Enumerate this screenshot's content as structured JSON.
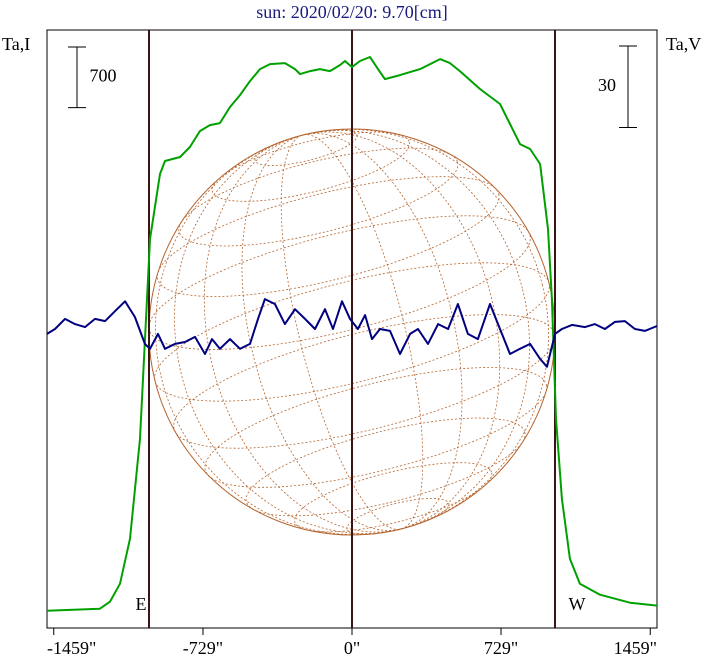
{
  "chart_data": {
    "type": "line",
    "title": "sun: 2020/02/20: 9.70[cm]",
    "ylabel": "Ta,I",
    "y2label": "Ta,V",
    "xlim": [
      -1492,
      1492
    ],
    "ylim": [
      -200,
      6700
    ],
    "y2lim": [
      -110,
      110
    ],
    "xticks": [
      {
        "value": -1459,
        "label": "-1459\""
      },
      {
        "value": -729,
        "label": "-729\""
      },
      {
        "value": 0,
        "label": "0\""
      },
      {
        "value": 729,
        "label": "729\""
      },
      {
        "value": 1459,
        "label": "1459\""
      }
    ],
    "i_scale": 700,
    "v_scale": 30,
    "limbs": [
      {
        "label": "E",
        "x": -993
      },
      {
        "label": "W",
        "x": 993
      }
    ],
    "series": [
      {
        "name": "I",
        "color": "#00a000",
        "x": [
          -1492,
          -1233,
          -1184,
          -1135,
          -1086,
          -1037,
          -1003,
          -988,
          -939,
          -915,
          -841,
          -793,
          -744,
          -695,
          -646,
          -597,
          -548,
          -499,
          -450,
          -401,
          -328,
          -279,
          -254,
          -205,
          -157,
          -108,
          -59,
          -34,
          0,
          39,
          88,
          127,
          161,
          235,
          333,
          431,
          479,
          528,
          626,
          724,
          773,
          822,
          871,
          920,
          959,
          978,
          998,
          1027,
          1066,
          1115,
          1213,
          1360,
          1492
        ],
        "values": [
          0,
          23,
          104,
          311,
          830,
          1984,
          3597,
          4289,
          5038,
          5188,
          5235,
          5350,
          5534,
          5603,
          5626,
          5811,
          5949,
          6110,
          6249,
          6307,
          6318,
          6249,
          6191,
          6226,
          6249,
          6226,
          6295,
          6342,
          6272,
          6342,
          6388,
          6249,
          6134,
          6180,
          6249,
          6364,
          6318,
          6226,
          6019,
          5846,
          5615,
          5384,
          5327,
          5154,
          4404,
          3597,
          2214,
          1291,
          600,
          311,
          184,
          92,
          58
        ]
      },
      {
        "name": "V",
        "color": "#000080",
        "axis": "y2",
        "x": [
          -1492,
          -1453,
          -1404,
          -1355,
          -1306,
          -1257,
          -1208,
          -1159,
          -1110,
          -1062,
          -1013,
          -988,
          -949,
          -915,
          -866,
          -817,
          -768,
          -719,
          -685,
          -646,
          -597,
          -548,
          -499,
          -460,
          -426,
          -377,
          -328,
          -279,
          -230,
          -181,
          -132,
          -93,
          -49,
          -10,
          29,
          64,
          98,
          137,
          186,
          235,
          284,
          323,
          372,
          421,
          470,
          518,
          567,
          616,
          675,
          724,
          773,
          822,
          871,
          920,
          954,
          993,
          1027,
          1076,
          1140,
          1188,
          1237,
          1286,
          1335,
          1384,
          1433,
          1492
        ],
        "values": [
          -1.8,
          0,
          3.7,
          1.8,
          0.7,
          3.7,
          2.9,
          6.6,
          10.2,
          4.4,
          -5.5,
          -7.3,
          -1.8,
          -7.3,
          -5.5,
          -4.8,
          -2.9,
          -9.2,
          -3.7,
          -7.3,
          -3.7,
          -7.3,
          -5.5,
          3.7,
          11.0,
          9.2,
          1.8,
          7.3,
          3.7,
          0,
          7.3,
          0,
          10.2,
          3.7,
          0,
          5.1,
          -3.7,
          0,
          -0.7,
          -9.2,
          -1.8,
          0,
          -5.5,
          1.8,
          0,
          9.2,
          -1.8,
          -3.7,
          9.2,
          0,
          -9.2,
          -7.3,
          -5.5,
          -11.0,
          -13.9,
          -1.8,
          0,
          1.5,
          0.7,
          1.8,
          0,
          2.6,
          2.9,
          0,
          -0.7,
          1.1
        ]
      }
    ]
  }
}
